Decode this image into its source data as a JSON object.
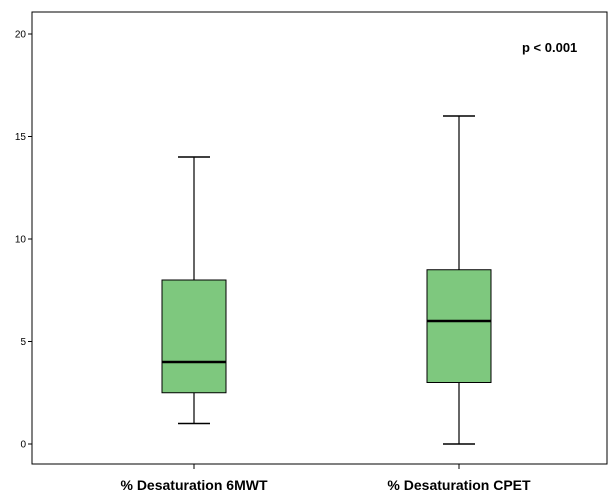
{
  "chart_data": {
    "type": "box",
    "categories": [
      "% Desaturation 6MWT",
      "% Desaturation CPET"
    ],
    "boxes": [
      {
        "category": "% Desaturation 6MWT",
        "min": 1,
        "q1": 2.5,
        "median": 4,
        "q3": 8,
        "max": 14
      },
      {
        "category": "% Desaturation CPET",
        "min": 0,
        "q1": 3,
        "median": 6,
        "q3": 8.5,
        "max": 16
      }
    ],
    "ylim": [
      -1,
      21
    ],
    "yticks": [
      0,
      5,
      10,
      15,
      20
    ],
    "ytick_labels": [
      "0",
      "5",
      "10",
      "15",
      "20"
    ],
    "annotation": "p < 0.001",
    "box_color": "#7ec87e",
    "grid": false
  }
}
